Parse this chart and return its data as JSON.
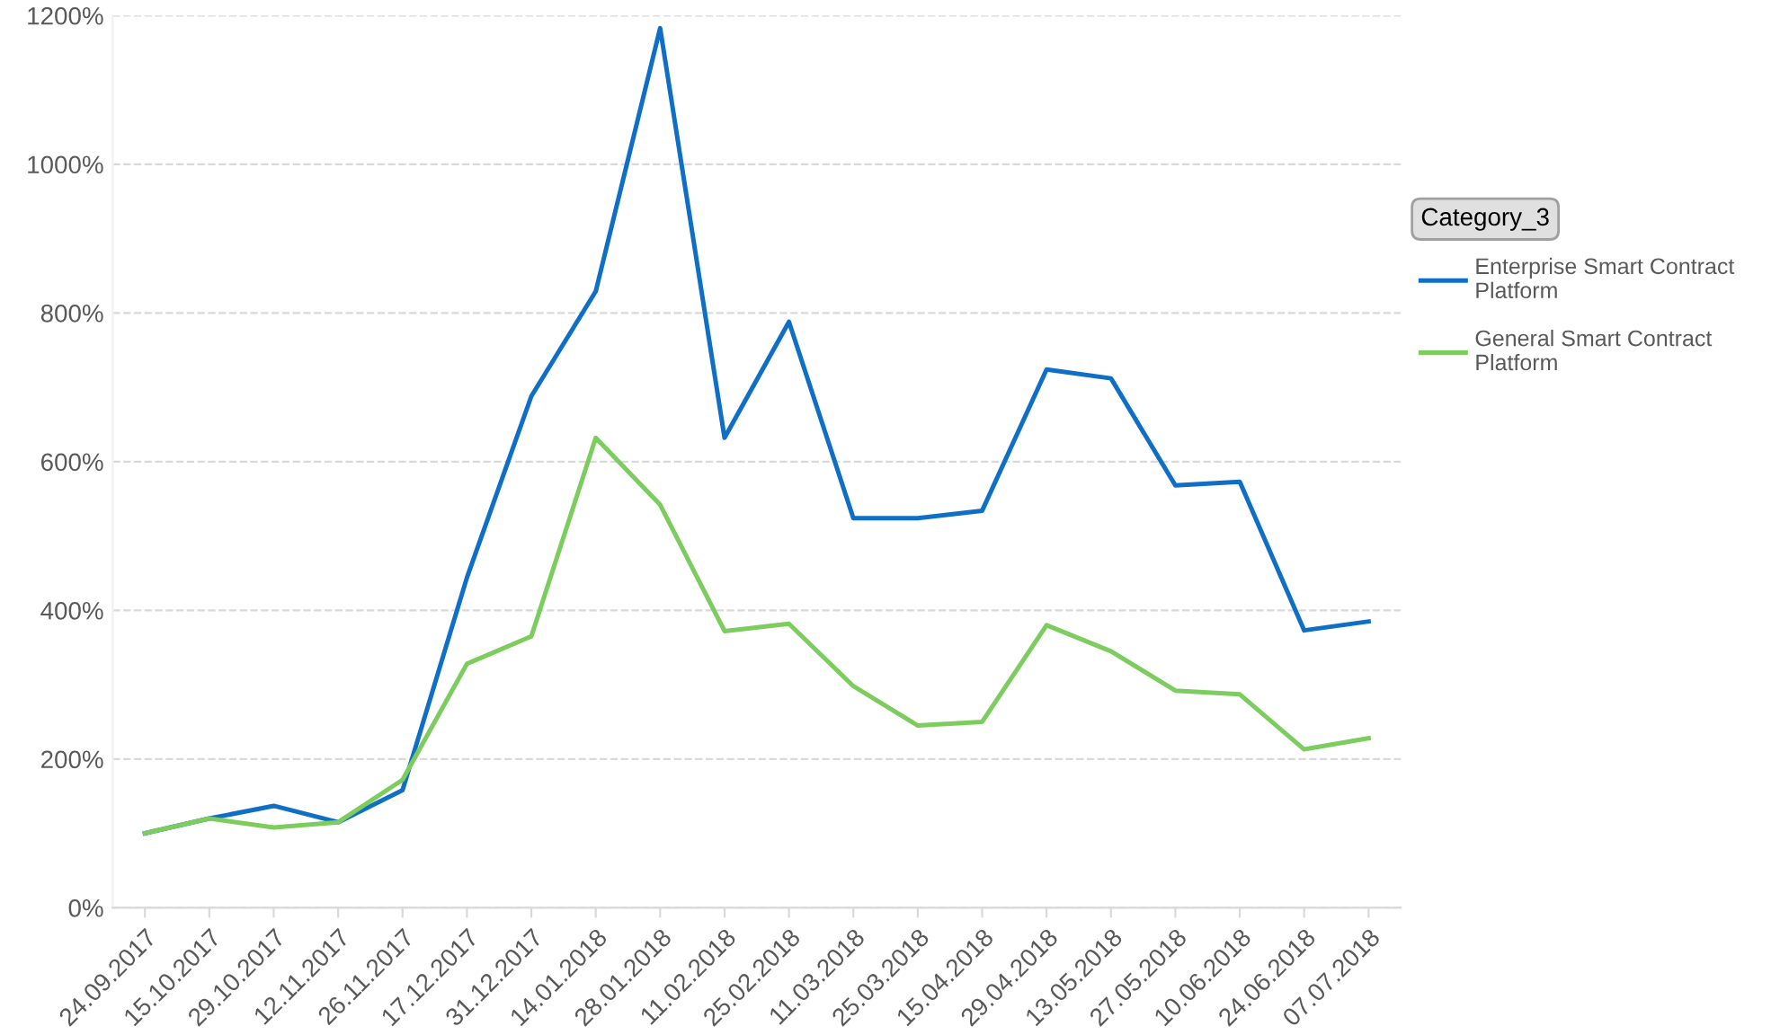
{
  "chart_data": {
    "type": "line",
    "legend_title": "Category_3",
    "legend": "right",
    "grid": "y",
    "marker": "none",
    "line_style": "solid",
    "categories": [
      "24.09.2017",
      "15.10.2017",
      "29.10.2017",
      "12.11.2017",
      "26.11.2017",
      "17.12.2017",
      "31.12.2017",
      "14.01.2018",
      "28.01.2018",
      "11.02.2018",
      "25.02.2018",
      "11.03.2018",
      "25.03.2018",
      "15.04.2018",
      "29.04.2018",
      "13.05.2018",
      "27.05.2018",
      "10.06.2018",
      "24.06.2018",
      "07.07.2018"
    ],
    "ylim": [
      0,
      1200
    ],
    "yticks": [
      {
        "value": 0,
        "label": "0%"
      },
      {
        "value": 200,
        "label": "200%"
      },
      {
        "value": 400,
        "label": "400%"
      },
      {
        "value": 600,
        "label": "600%"
      },
      {
        "value": 800,
        "label": "800%"
      },
      {
        "value": 1000,
        "label": "1000%"
      },
      {
        "value": 1200,
        "label": "1200%"
      }
    ],
    "series": [
      {
        "name": "Enterprise Smart Contract Platform",
        "color": "#0f6fc6",
        "values": [
          100,
          120,
          137,
          115,
          158,
          444,
          688,
          829,
          1183,
          632,
          788,
          524,
          524,
          534,
          724,
          712,
          568,
          573,
          373,
          385
        ]
      },
      {
        "name": "General Smart Contract Platform",
        "color": "#7ccc5e",
        "values": [
          100,
          120,
          108,
          115,
          172,
          328,
          365,
          632,
          542,
          372,
          382,
          298,
          245,
          250,
          380,
          345,
          292,
          287,
          213,
          228
        ]
      }
    ]
  }
}
